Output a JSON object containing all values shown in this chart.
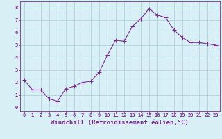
{
  "x": [
    0,
    1,
    2,
    3,
    4,
    5,
    6,
    7,
    8,
    9,
    10,
    11,
    12,
    13,
    14,
    15,
    16,
    17,
    18,
    19,
    20,
    21,
    22,
    23
  ],
  "y": [
    2.2,
    1.4,
    1.4,
    0.7,
    0.5,
    1.5,
    1.7,
    2.0,
    2.1,
    2.8,
    4.2,
    5.4,
    5.3,
    6.5,
    7.1,
    7.9,
    7.4,
    7.2,
    6.2,
    5.6,
    5.2,
    5.2,
    5.1,
    5.0
  ],
  "line_color": "#7b2d8b",
  "marker": "+",
  "marker_size": 4.0,
  "bg_color": "#d8eff5",
  "grid_color": "#aacfdb",
  "xlabel": "Windchill (Refroidissement éolien,°C)",
  "xlim": [
    -0.5,
    23.5
  ],
  "ylim": [
    -0.3,
    8.5
  ],
  "yticks": [
    0,
    1,
    2,
    3,
    4,
    5,
    6,
    7,
    8
  ],
  "xticks": [
    0,
    1,
    2,
    3,
    4,
    5,
    6,
    7,
    8,
    9,
    10,
    11,
    12,
    13,
    14,
    15,
    16,
    17,
    18,
    19,
    20,
    21,
    22,
    23
  ],
  "tick_label_fontsize": 5.0,
  "xlabel_fontsize": 6.5,
  "line_width": 0.8
}
